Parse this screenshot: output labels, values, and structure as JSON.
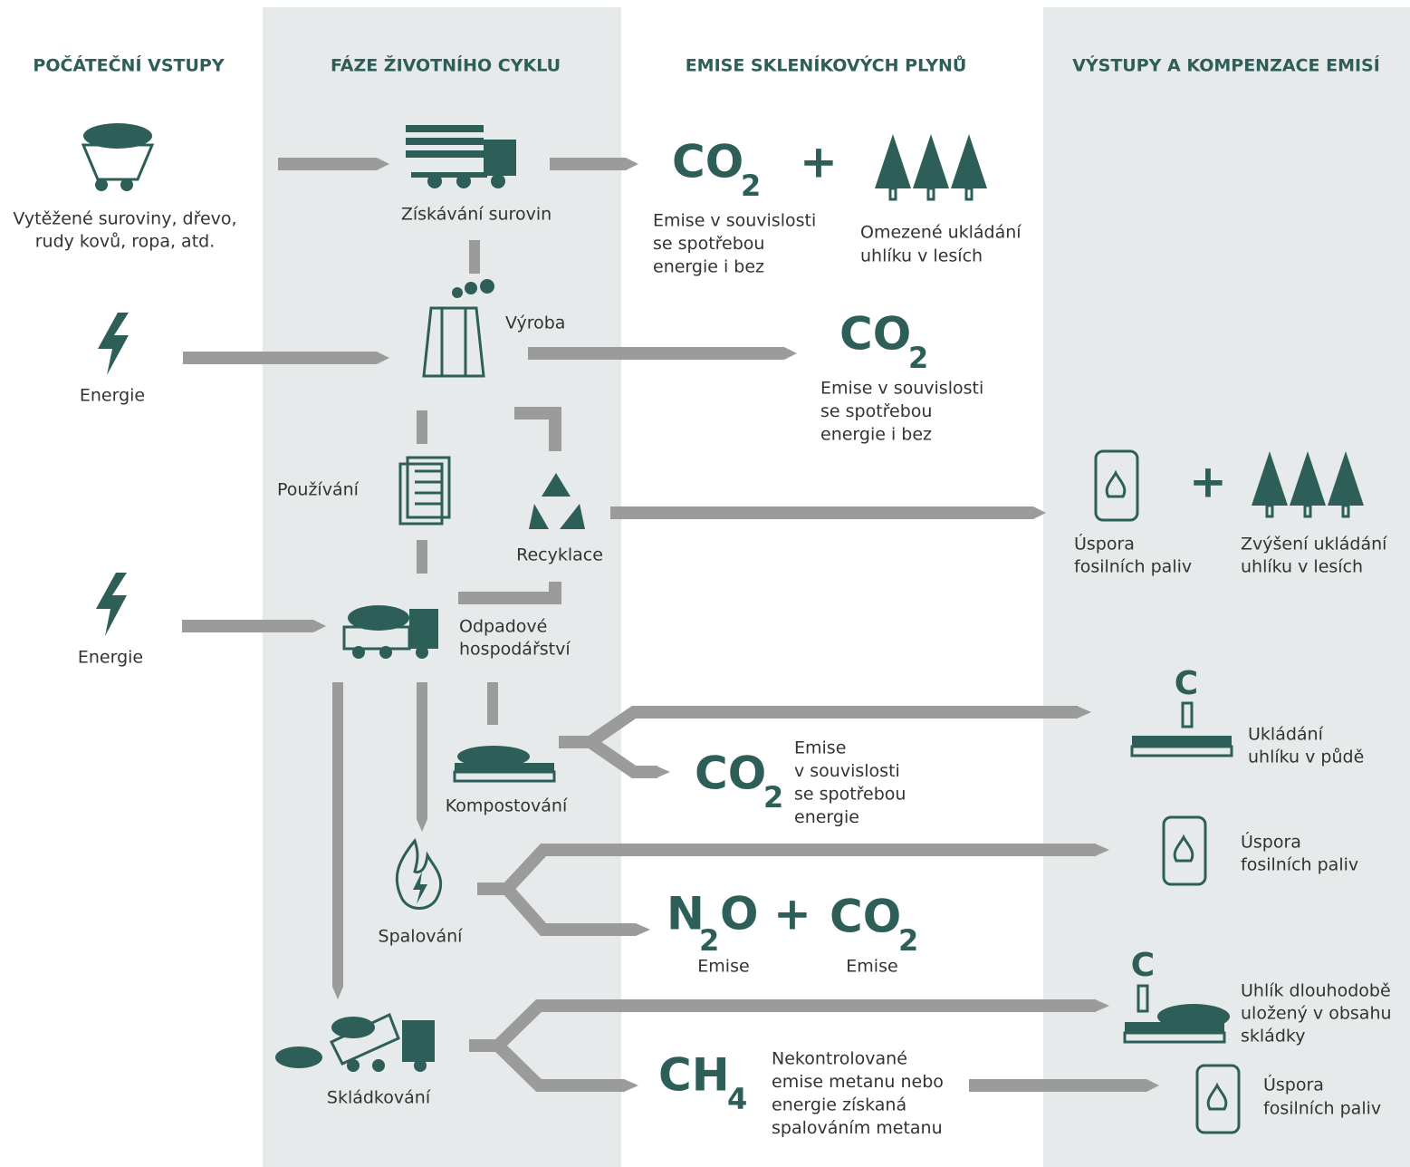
{
  "headers": [
    "POČÁTEČNÍ VSTUPY",
    "FÁZE ŽIVOTNÍHO CYKLU",
    "EMISE SKLENÍKOVÝCH PLYNŮ",
    "VÝSTUPY A KOMPENZACE EMISÍ"
  ],
  "inputs": {
    "raw_materials": [
      "Vytěžené suroviny, dřevo,",
      "rudy kovů, ropa, atd."
    ],
    "energy_1": "Energie",
    "energy_2": "Energie"
  },
  "phases": {
    "extraction": "Získávání surovin",
    "production": "Výroba",
    "use": "Používání",
    "recycling": "Recyklace",
    "waste": [
      "Odpadové",
      "hospodářství"
    ],
    "composting": "Kompostování",
    "incineration": "Spalování",
    "landfill": "Skládkování"
  },
  "emissions": {
    "extraction": {
      "formula": {
        "main": "CO",
        "sub": "2"
      },
      "plus": "+",
      "text": [
        "Emise v souvislosti",
        "se spotřebou",
        "energie i bez"
      ],
      "forest": [
        "Omezené ukládání",
        "uhlíku v lesích"
      ]
    },
    "production": {
      "formula": {
        "main": "CO",
        "sub": "2"
      },
      "text": [
        "Emise v souvislosti",
        "se spotřebou",
        "energie i bez"
      ]
    },
    "composting": {
      "formula": {
        "main": "CO",
        "sub": "2"
      },
      "text": [
        "Emise",
        "v souvislosti",
        "se spotřebou",
        "energie"
      ]
    },
    "incineration": {
      "n2o": {
        "parts": [
          "N",
          "2",
          "O"
        ],
        "label": "Emise"
      },
      "plus": "+",
      "co2": {
        "main": "CO",
        "sub": "2",
        "label": "Emise"
      }
    },
    "landfill": {
      "formula": {
        "main": "CH",
        "sub": "4"
      },
      "text": [
        "Nekontrolované",
        "emise metanu nebo",
        "energie získaná",
        "spalováním metanu"
      ]
    }
  },
  "outputs": {
    "recycling": {
      "fuel": [
        "Úspora",
        "fosilních paliv"
      ],
      "plus": "+",
      "forest": [
        "Zvýšení ukládání",
        "uhlíku v lesích"
      ]
    },
    "composting": {
      "carbon": "C",
      "text": [
        "Ukládání",
        "uhlíku v půdě"
      ]
    },
    "incineration": {
      "fuel": [
        "Úspora",
        "fosilních paliv"
      ]
    },
    "landfill": {
      "carbon": "C",
      "text": [
        "Uhlík dlouhodobě",
        "uložený v obsahu",
        "skládky"
      ],
      "fuel": [
        "Úspora",
        "fosilních paliv"
      ]
    }
  }
}
